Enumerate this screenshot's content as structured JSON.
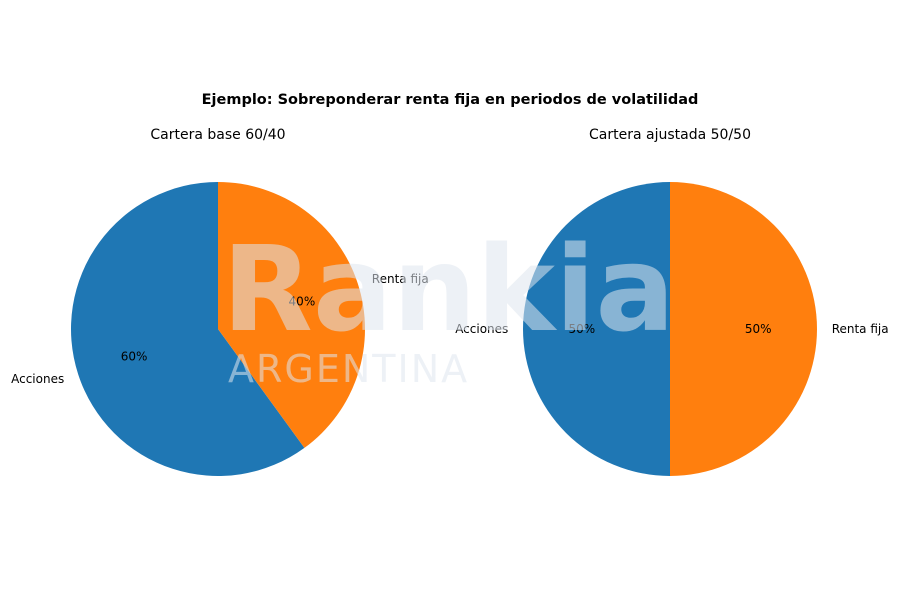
{
  "watermark": {
    "brand": "Rankia",
    "country": "ARGENTINA"
  },
  "chart_data": {
    "title": "Ejemplo: Sobreponderar renta fija en periodos de volatilidad",
    "charts": [
      {
        "type": "pie",
        "title": "Cartera base 60/40",
        "slices": [
          {
            "label": "Acciones",
            "value": 60,
            "pct_label": "60%",
            "color": "#1f77b4"
          },
          {
            "label": "Renta fija",
            "value": 40,
            "pct_label": "40%",
            "color": "#ff7f0e"
          }
        ]
      },
      {
        "type": "pie",
        "title": "Cartera ajustada 50/50",
        "slices": [
          {
            "label": "Acciones",
            "value": 50,
            "pct_label": "50%",
            "color": "#1f77b4"
          },
          {
            "label": "Renta fija",
            "value": 50,
            "pct_label": "50%",
            "color": "#ff7f0e"
          }
        ]
      }
    ]
  }
}
